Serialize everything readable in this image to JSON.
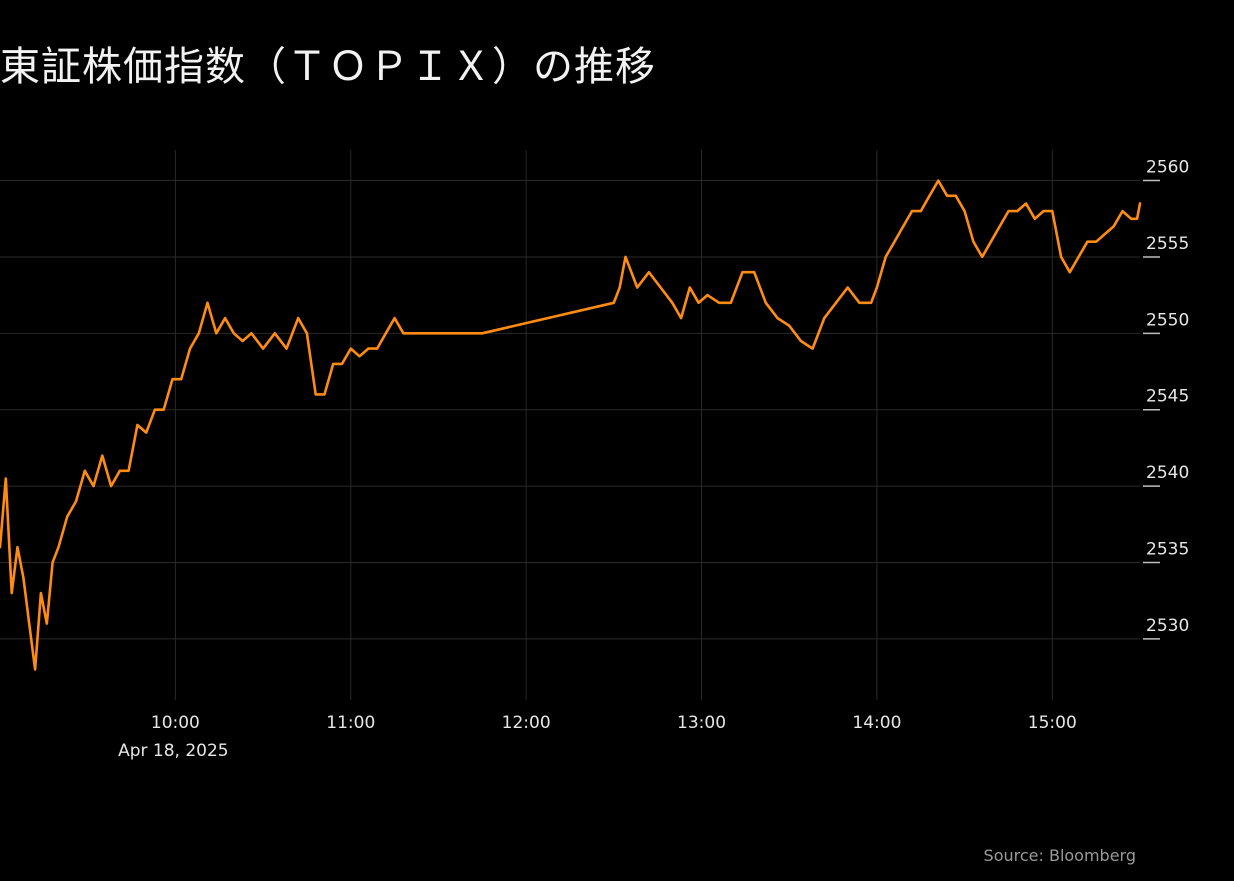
{
  "title": "東証株価指数（ＴＯＰＩＸ）の推移",
  "source": "Source: Bloomberg",
  "colors": {
    "background": "#000000",
    "line": "#ff8c12",
    "grid": "#2a2a2a",
    "text": "#e6e6e6"
  },
  "chart_data": {
    "type": "line",
    "title": "東証株価指数（ＴＯＰＩＸ）の推移",
    "xlabel": "",
    "ylabel": "",
    "date_label": "Apr 18, 2025",
    "x_ticks": [
      "10:00",
      "11:00",
      "12:00",
      "13:00",
      "14:00",
      "15:00"
    ],
    "y_ticks": [
      2530,
      2535,
      2540,
      2545,
      2550,
      2555,
      2560
    ],
    "xlim": [
      "09:00",
      "15:30"
    ],
    "ylim": [
      2526,
      2562
    ],
    "grid": true,
    "legend": "none",
    "y_axis_position": "right",
    "series": [
      {
        "x": [
          "09:00",
          "09:02",
          "09:04",
          "09:06",
          "09:08",
          "09:10",
          "09:12",
          "09:14",
          "09:16",
          "09:18",
          "09:20",
          "09:23",
          "09:26",
          "09:29",
          "09:32",
          "09:35",
          "09:38",
          "09:41",
          "09:44",
          "09:47",
          "09:50",
          "09:53",
          "09:56",
          "09:59",
          "10:02",
          "10:05",
          "10:08",
          "10:11",
          "10:14",
          "10:17",
          "10:20",
          "10:23",
          "10:26",
          "10:30",
          "10:34",
          "10:38",
          "10:42",
          "10:45",
          "10:48",
          "10:51",
          "10:54",
          "10:57",
          "11:00",
          "11:03",
          "11:06",
          "11:09",
          "11:12",
          "11:15",
          "11:18",
          "11:21",
          "11:24",
          "11:27",
          "11:30",
          "11:45",
          "12:30",
          "12:32",
          "12:34",
          "12:36",
          "12:38",
          "12:42",
          "12:46",
          "12:50",
          "12:53",
          "12:56",
          "12:59",
          "13:02",
          "13:06",
          "13:10",
          "13:14",
          "13:18",
          "13:22",
          "13:26",
          "13:30",
          "13:34",
          "13:38",
          "13:42",
          "13:46",
          "13:50",
          "13:54",
          "13:58",
          "14:00",
          "14:03",
          "14:06",
          "14:09",
          "14:12",
          "14:15",
          "14:18",
          "14:21",
          "14:24",
          "14:27",
          "14:30",
          "14:33",
          "14:36",
          "14:39",
          "14:42",
          "14:45",
          "14:48",
          "14:51",
          "14:54",
          "14:57",
          "15:00",
          "15:03",
          "15:06",
          "15:09",
          "15:12",
          "15:15",
          "15:18",
          "15:21",
          "15:24",
          "15:27",
          "15:29",
          "15:30"
        ],
        "y": [
          2536,
          2540.5,
          2533,
          2536,
          2534,
          2531,
          2528,
          2533,
          2531,
          2535,
          2536,
          2538,
          2539,
          2541,
          2540,
          2542,
          2540,
          2541,
          2541,
          2544,
          2543.5,
          2545,
          2545,
          2547,
          2547,
          2549,
          2550,
          2552,
          2550,
          2551,
          2550,
          2549.5,
          2550,
          2549,
          2550,
          2549,
          2551,
          2550,
          2546,
          2546,
          2548,
          2548,
          2549,
          2548.5,
          2549,
          2549,
          2550,
          2551,
          2550,
          2550,
          2550,
          2550,
          2550,
          2550,
          2552,
          2553,
          2555,
          2554,
          2553,
          2554,
          2553,
          2552,
          2551,
          2553,
          2552,
          2552.5,
          2552,
          2552,
          2554,
          2554,
          2552,
          2551,
          2550.5,
          2549.5,
          2549,
          2551,
          2552,
          2553,
          2552,
          2552,
          2553,
          2555,
          2556,
          2557,
          2558,
          2558,
          2559,
          2560,
          2559,
          2559,
          2558,
          2556,
          2555,
          2556,
          2557,
          2558,
          2558,
          2558.5,
          2557.5,
          2558,
          2558,
          2555,
          2554,
          2555,
          2556,
          2556,
          2556.5,
          2557,
          2558,
          2557.5,
          2557.5,
          2558.5
        ]
      }
    ]
  }
}
